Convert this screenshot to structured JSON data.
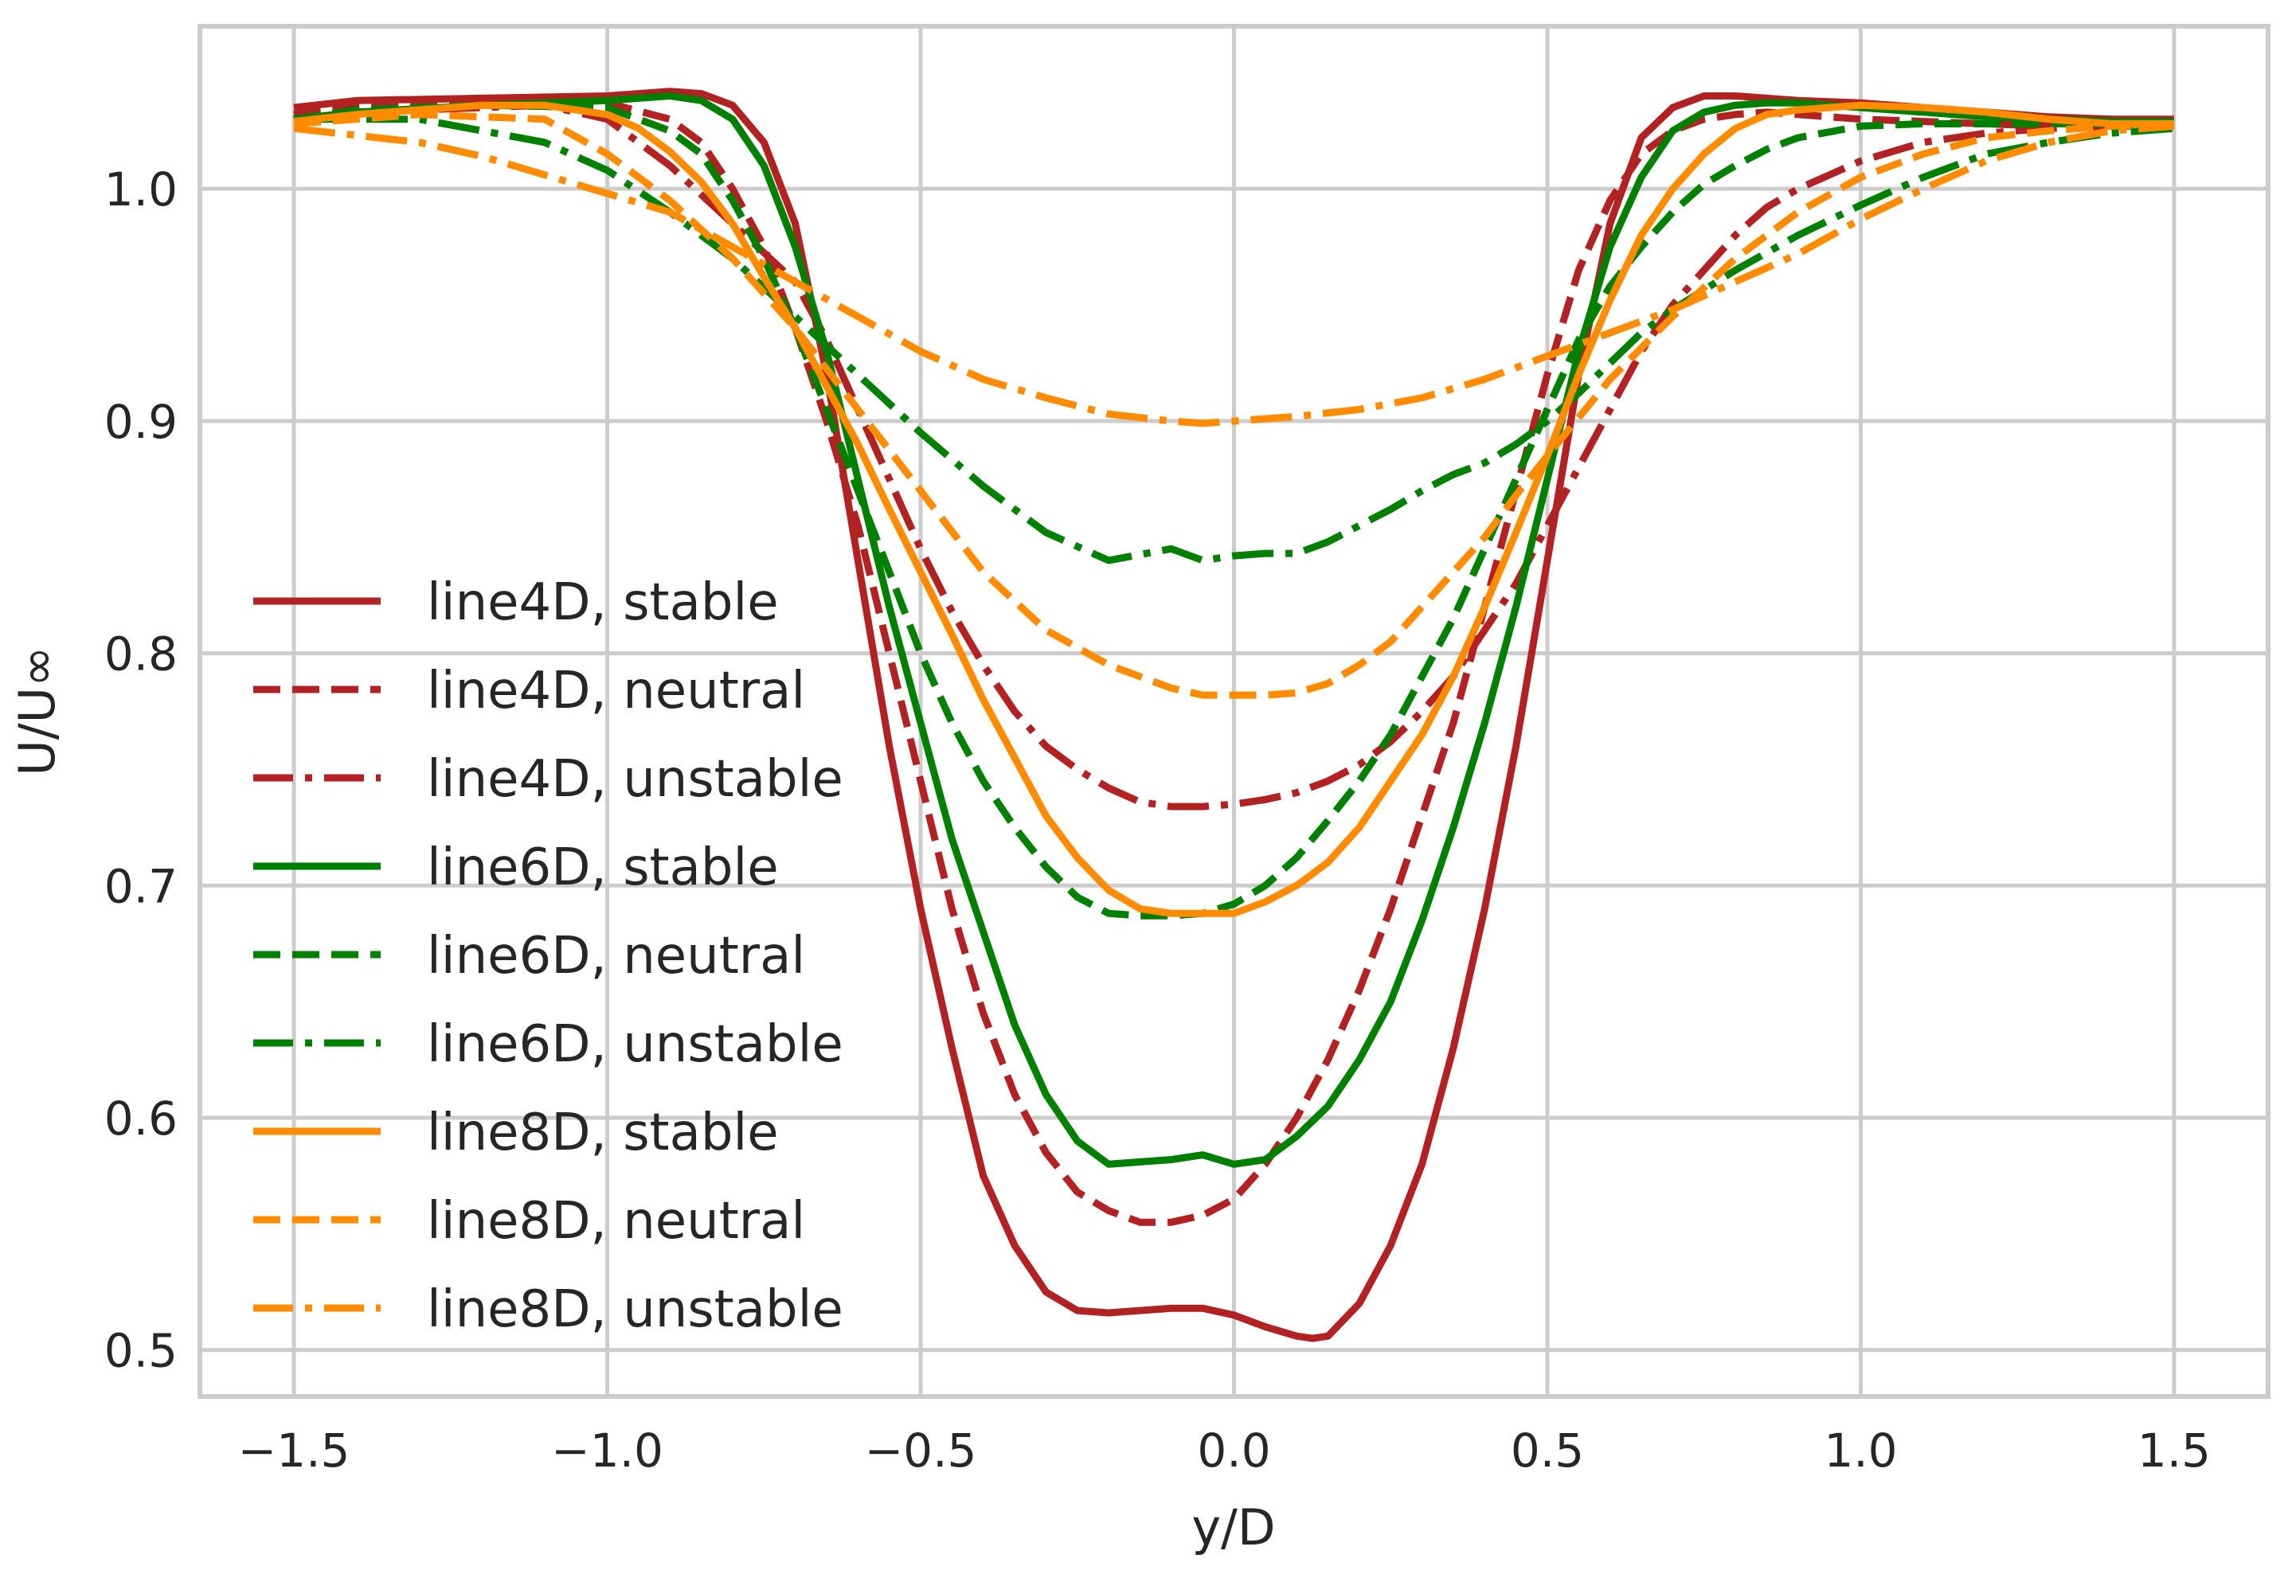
{
  "chart_data": {
    "type": "line",
    "title": "",
    "xlabel": "y/D",
    "ylabel": "U/U∞",
    "xlim": [
      -1.65,
      1.65
    ],
    "ylim": [
      0.48,
      1.07
    ],
    "xticks": [
      -1.5,
      -1.0,
      -0.5,
      0.0,
      0.5,
      1.0,
      1.5
    ],
    "xtick_labels": [
      "−1.5",
      "−1.0",
      "−0.5",
      "0.0",
      "0.5",
      "1.0",
      "1.5"
    ],
    "yticks": [
      0.5,
      0.6,
      0.7,
      0.8,
      0.9,
      1.0
    ],
    "ytick_labels": [
      "0.5",
      "0.6",
      "0.7",
      "0.8",
      "0.9",
      "1.0"
    ],
    "grid": true,
    "legend_position": "center-left",
    "series": [
      {
        "name": "line4D, stable",
        "color": "#b22222",
        "style": "solid",
        "x": [
          -1.5,
          -1.4,
          -1.2,
          -1.0,
          -0.9,
          -0.85,
          -0.8,
          -0.75,
          -0.7,
          -0.65,
          -0.6,
          -0.55,
          -0.5,
          -0.45,
          -0.4,
          -0.35,
          -0.3,
          -0.25,
          -0.2,
          -0.15,
          -0.1,
          -0.05,
          0.0,
          0.05,
          0.1,
          0.125,
          0.15,
          0.2,
          0.25,
          0.3,
          0.35,
          0.4,
          0.45,
          0.5,
          0.55,
          0.6,
          0.65,
          0.7,
          0.75,
          0.8,
          0.85,
          0.9,
          1.0,
          1.1,
          1.2,
          1.3,
          1.4,
          1.5
        ],
        "y": [
          1.035,
          1.038,
          1.039,
          1.04,
          1.042,
          1.041,
          1.036,
          1.02,
          0.985,
          0.92,
          0.84,
          0.76,
          0.69,
          0.63,
          0.575,
          0.545,
          0.525,
          0.517,
          0.516,
          0.517,
          0.518,
          0.518,
          0.515,
          0.51,
          0.506,
          0.505,
          0.506,
          0.52,
          0.545,
          0.58,
          0.63,
          0.69,
          0.76,
          0.84,
          0.92,
          0.985,
          1.022,
          1.035,
          1.04,
          1.04,
          1.039,
          1.038,
          1.037,
          1.035,
          1.033,
          1.031,
          1.03,
          1.03
        ]
      },
      {
        "name": "line4D, neutral",
        "color": "#b22222",
        "style": "dashed",
        "x": [
          -1.5,
          -1.4,
          -1.2,
          -1.0,
          -0.9,
          -0.85,
          -0.8,
          -0.75,
          -0.7,
          -0.65,
          -0.6,
          -0.55,
          -0.5,
          -0.45,
          -0.4,
          -0.35,
          -0.3,
          -0.25,
          -0.2,
          -0.15,
          -0.1,
          -0.05,
          0.0,
          0.05,
          0.1,
          0.15,
          0.2,
          0.25,
          0.3,
          0.35,
          0.4,
          0.45,
          0.5,
          0.55,
          0.6,
          0.65,
          0.7,
          0.75,
          0.8,
          0.85,
          0.9,
          1.0,
          1.1,
          1.2,
          1.3,
          1.4,
          1.5
        ],
        "y": [
          1.032,
          1.036,
          1.038,
          1.037,
          1.03,
          1.02,
          1.0,
          0.975,
          0.94,
          0.9,
          0.855,
          0.8,
          0.745,
          0.69,
          0.645,
          0.61,
          0.585,
          0.568,
          0.56,
          0.555,
          0.555,
          0.558,
          0.565,
          0.58,
          0.6,
          0.625,
          0.655,
          0.69,
          0.73,
          0.77,
          0.82,
          0.87,
          0.92,
          0.965,
          0.995,
          1.015,
          1.025,
          1.03,
          1.032,
          1.033,
          1.032,
          1.03,
          1.029,
          1.028,
          1.027,
          1.027,
          1.027
        ]
      },
      {
        "name": "line4D, unstable",
        "color": "#b22222",
        "style": "dashdot",
        "x": [
          -1.5,
          -1.3,
          -1.1,
          -1.0,
          -0.9,
          -0.8,
          -0.7,
          -0.65,
          -0.6,
          -0.55,
          -0.5,
          -0.45,
          -0.4,
          -0.35,
          -0.3,
          -0.25,
          -0.2,
          -0.15,
          -0.1,
          -0.05,
          0.0,
          0.05,
          0.1,
          0.15,
          0.2,
          0.25,
          0.3,
          0.35,
          0.4,
          0.45,
          0.5,
          0.55,
          0.6,
          0.65,
          0.7,
          0.75,
          0.8,
          0.85,
          0.9,
          1.0,
          1.1,
          1.2,
          1.3,
          1.4,
          1.5
        ],
        "y": [
          1.03,
          1.034,
          1.036,
          1.03,
          1.01,
          0.985,
          0.96,
          0.935,
          0.905,
          0.875,
          0.845,
          0.818,
          0.795,
          0.775,
          0.76,
          0.75,
          0.742,
          0.736,
          0.734,
          0.734,
          0.735,
          0.737,
          0.74,
          0.745,
          0.752,
          0.762,
          0.775,
          0.79,
          0.81,
          0.83,
          0.855,
          0.88,
          0.905,
          0.93,
          0.95,
          0.965,
          0.98,
          0.992,
          1.0,
          1.012,
          1.02,
          1.024,
          1.026,
          1.027,
          1.027
        ]
      },
      {
        "name": "line6D, stable",
        "color": "#008000",
        "style": "solid",
        "x": [
          -1.5,
          -1.4,
          -1.2,
          -1.0,
          -0.9,
          -0.85,
          -0.8,
          -0.75,
          -0.7,
          -0.65,
          -0.6,
          -0.55,
          -0.5,
          -0.45,
          -0.4,
          -0.35,
          -0.3,
          -0.25,
          -0.2,
          -0.15,
          -0.1,
          -0.05,
          0.0,
          0.05,
          0.1,
          0.15,
          0.2,
          0.25,
          0.3,
          0.35,
          0.4,
          0.45,
          0.5,
          0.55,
          0.6,
          0.65,
          0.7,
          0.75,
          0.8,
          0.85,
          0.9,
          1.0,
          1.1,
          1.2,
          1.3,
          1.4,
          1.5
        ],
        "y": [
          1.03,
          1.033,
          1.036,
          1.038,
          1.04,
          1.038,
          1.03,
          1.01,
          0.975,
          0.93,
          0.875,
          0.82,
          0.77,
          0.72,
          0.68,
          0.64,
          0.61,
          0.59,
          0.58,
          0.581,
          0.582,
          0.584,
          0.58,
          0.582,
          0.592,
          0.605,
          0.625,
          0.65,
          0.685,
          0.725,
          0.77,
          0.82,
          0.875,
          0.93,
          0.975,
          1.005,
          1.025,
          1.033,
          1.036,
          1.037,
          1.037,
          1.035,
          1.033,
          1.031,
          1.03,
          1.029,
          1.029
        ]
      },
      {
        "name": "line6D, neutral",
        "color": "#008000",
        "style": "dashed",
        "x": [
          -1.5,
          -1.4,
          -1.2,
          -1.0,
          -0.9,
          -0.85,
          -0.8,
          -0.75,
          -0.7,
          -0.65,
          -0.6,
          -0.55,
          -0.5,
          -0.45,
          -0.4,
          -0.35,
          -0.3,
          -0.25,
          -0.2,
          -0.15,
          -0.1,
          -0.05,
          0.0,
          0.05,
          0.1,
          0.15,
          0.2,
          0.25,
          0.3,
          0.35,
          0.4,
          0.45,
          0.5,
          0.55,
          0.6,
          0.65,
          0.7,
          0.75,
          0.8,
          0.85,
          0.9,
          1.0,
          1.1,
          1.2,
          1.3,
          1.4,
          1.5
        ],
        "y": [
          1.03,
          1.034,
          1.036,
          1.035,
          1.025,
          1.015,
          0.995,
          0.97,
          0.94,
          0.905,
          0.87,
          0.835,
          0.8,
          0.77,
          0.745,
          0.725,
          0.708,
          0.695,
          0.688,
          0.687,
          0.687,
          0.688,
          0.692,
          0.7,
          0.712,
          0.728,
          0.745,
          0.765,
          0.79,
          0.815,
          0.845,
          0.875,
          0.905,
          0.935,
          0.958,
          0.975,
          0.99,
          1.002,
          1.01,
          1.017,
          1.022,
          1.027,
          1.028,
          1.028,
          1.028,
          1.028,
          1.028
        ]
      },
      {
        "name": "line6D, unstable",
        "color": "#008000",
        "style": "dashdot",
        "x": [
          -1.5,
          -1.3,
          -1.1,
          -1.0,
          -0.9,
          -0.8,
          -0.7,
          -0.6,
          -0.5,
          -0.4,
          -0.3,
          -0.2,
          -0.1,
          -0.05,
          0.0,
          0.05,
          0.1,
          0.15,
          0.2,
          0.25,
          0.3,
          0.35,
          0.4,
          0.45,
          0.5,
          0.55,
          0.6,
          0.65,
          0.7,
          0.8,
          0.9,
          1.0,
          1.1,
          1.2,
          1.3,
          1.4,
          1.5
        ],
        "y": [
          1.03,
          1.03,
          1.02,
          1.008,
          0.99,
          0.97,
          0.945,
          0.92,
          0.895,
          0.872,
          0.852,
          0.84,
          0.845,
          0.84,
          0.842,
          0.843,
          0.843,
          0.848,
          0.855,
          0.862,
          0.87,
          0.877,
          0.882,
          0.89,
          0.9,
          0.912,
          0.925,
          0.938,
          0.948,
          0.965,
          0.98,
          0.993,
          1.005,
          1.015,
          1.02,
          1.024,
          1.026
        ]
      },
      {
        "name": "line8D, stable",
        "color": "#ff8c00",
        "style": "solid",
        "x": [
          -1.5,
          -1.4,
          -1.3,
          -1.2,
          -1.1,
          -1.0,
          -0.95,
          -0.9,
          -0.85,
          -0.8,
          -0.75,
          -0.7,
          -0.65,
          -0.6,
          -0.55,
          -0.5,
          -0.45,
          -0.4,
          -0.35,
          -0.3,
          -0.25,
          -0.2,
          -0.15,
          -0.1,
          -0.05,
          0.0,
          0.05,
          0.1,
          0.15,
          0.2,
          0.25,
          0.3,
          0.35,
          0.4,
          0.45,
          0.5,
          0.55,
          0.6,
          0.65,
          0.7,
          0.75,
          0.8,
          0.85,
          0.9,
          1.0,
          1.1,
          1.2,
          1.3,
          1.4,
          1.5
        ],
        "y": [
          1.029,
          1.032,
          1.034,
          1.036,
          1.036,
          1.032,
          1.026,
          1.016,
          1.003,
          0.985,
          0.962,
          0.94,
          0.915,
          0.89,
          0.862,
          0.835,
          0.808,
          0.78,
          0.755,
          0.73,
          0.712,
          0.698,
          0.69,
          0.688,
          0.688,
          0.688,
          0.693,
          0.7,
          0.71,
          0.725,
          0.745,
          0.765,
          0.79,
          0.82,
          0.852,
          0.885,
          0.92,
          0.952,
          0.98,
          1.0,
          1.015,
          1.026,
          1.032,
          1.034,
          1.036,
          1.035,
          1.033,
          1.03,
          1.028,
          1.028
        ]
      },
      {
        "name": "line8D, neutral",
        "color": "#ff8c00",
        "style": "dashed",
        "x": [
          -1.5,
          -1.3,
          -1.1,
          -1.0,
          -0.9,
          -0.8,
          -0.7,
          -0.6,
          -0.5,
          -0.4,
          -0.3,
          -0.2,
          -0.1,
          -0.05,
          0.0,
          0.05,
          0.1,
          0.15,
          0.2,
          0.25,
          0.3,
          0.35,
          0.4,
          0.45,
          0.5,
          0.6,
          0.7,
          0.8,
          0.9,
          1.0,
          1.1,
          1.2,
          1.3,
          1.4,
          1.5
        ],
        "y": [
          1.028,
          1.032,
          1.03,
          1.015,
          0.995,
          0.97,
          0.94,
          0.905,
          0.87,
          0.835,
          0.81,
          0.795,
          0.785,
          0.782,
          0.782,
          0.782,
          0.783,
          0.787,
          0.795,
          0.805,
          0.82,
          0.835,
          0.85,
          0.868,
          0.885,
          0.918,
          0.945,
          0.97,
          0.99,
          1.005,
          1.015,
          1.022,
          1.025,
          1.027,
          1.028
        ]
      },
      {
        "name": "line8D, unstable",
        "color": "#ff8c00",
        "style": "dashdot",
        "x": [
          -1.5,
          -1.3,
          -1.2,
          -1.1,
          -1.0,
          -0.9,
          -0.8,
          -0.7,
          -0.6,
          -0.5,
          -0.4,
          -0.3,
          -0.2,
          -0.1,
          -0.05,
          0.0,
          0.05,
          0.1,
          0.2,
          0.3,
          0.4,
          0.5,
          0.6,
          0.7,
          0.8,
          0.9,
          1.0,
          1.1,
          1.2,
          1.3,
          1.4,
          1.5
        ],
        "y": [
          1.026,
          1.02,
          1.014,
          1.006,
          0.998,
          0.99,
          0.975,
          0.96,
          0.945,
          0.93,
          0.918,
          0.91,
          0.903,
          0.9,
          0.899,
          0.9,
          0.901,
          0.902,
          0.905,
          0.91,
          0.918,
          0.928,
          0.938,
          0.948,
          0.96,
          0.972,
          0.987,
          1.0,
          1.012,
          1.02,
          1.025,
          1.027
        ]
      }
    ]
  }
}
